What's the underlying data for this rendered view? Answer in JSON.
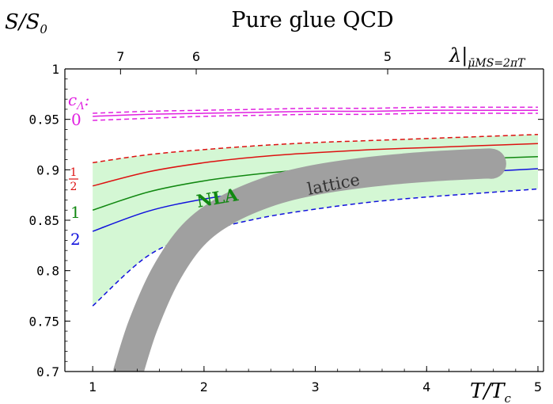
{
  "chart_data": {
    "type": "line",
    "title": "Pure glue QCD",
    "ylabel_main": "S/S",
    "ylabel_sub": "0",
    "xlabel_main": "T/T",
    "xlabel_sub": "c",
    "top_axis_label_main": "λ|",
    "top_axis_label_sub": "μ̄MS=2πT",
    "xlim": [
      0.75,
      5.05
    ],
    "ylim": [
      0.7,
      1.0
    ],
    "x_ticks": [
      1,
      2,
      3,
      4,
      5
    ],
    "x_tick_labels": [
      "1",
      "2",
      "3",
      "4",
      "5"
    ],
    "y_ticks": [
      0.7,
      0.75,
      0.8,
      0.85,
      0.9,
      0.95,
      1.0
    ],
    "y_tick_labels": [
      "0.7",
      "0.75",
      "0.8",
      "0.85",
      "0.9",
      "0.95",
      "1"
    ],
    "top_ticks": [
      {
        "label": "7",
        "x": 1.25
      },
      {
        "label": "6",
        "x": 1.93
      },
      {
        "label": "5",
        "x": 3.65
      }
    ],
    "legend_header": "c",
    "legend_header_sub": "Λ",
    "legend_header_suffix": ":",
    "grid": false,
    "band": {
      "name": "NLA",
      "color": "#d4f7d4",
      "x": [
        1.0,
        1.5,
        2.0,
        2.5,
        3.0,
        3.5,
        4.0,
        4.5,
        5.0
      ],
      "upper": [
        0.907,
        0.915,
        0.92,
        0.924,
        0.927,
        0.929,
        0.931,
        0.933,
        0.935
      ],
      "lower": [
        0.765,
        0.815,
        0.838,
        0.852,
        0.861,
        0.868,
        0.873,
        0.877,
        0.881
      ]
    },
    "series": [
      {
        "label": "0",
        "color": "#e020e0",
        "dash": false,
        "x": [
          1.0,
          1.5,
          2.0,
          2.5,
          3.0,
          3.5,
          4.0,
          4.5,
          5.0
        ],
        "values": [
          0.953,
          0.955,
          0.956,
          0.957,
          0.958,
          0.958,
          0.959,
          0.959,
          0.959
        ]
      },
      {
        "label": "",
        "color": "#e020e0",
        "dash": true,
        "x": [
          1.0,
          1.5,
          2.0,
          2.5,
          3.0,
          3.5,
          4.0,
          4.5,
          5.0
        ],
        "values": [
          0.956,
          0.958,
          0.959,
          0.96,
          0.961,
          0.961,
          0.962,
          0.962,
          0.962
        ]
      },
      {
        "label": "",
        "color": "#e020e0",
        "dash": true,
        "x": [
          1.0,
          1.5,
          2.0,
          2.5,
          3.0,
          3.5,
          4.0,
          4.5,
          5.0
        ],
        "values": [
          0.949,
          0.951,
          0.953,
          0.954,
          0.955,
          0.955,
          0.956,
          0.956,
          0.956
        ]
      },
      {
        "label": "1/2",
        "color": "#dd1111",
        "dash": false,
        "x": [
          1.0,
          1.5,
          2.0,
          2.5,
          3.0,
          3.5,
          4.0,
          4.5,
          5.0
        ],
        "values": [
          0.884,
          0.898,
          0.907,
          0.913,
          0.917,
          0.92,
          0.922,
          0.924,
          0.926
        ]
      },
      {
        "label": "1",
        "color": "#118811",
        "dash": false,
        "x": [
          1.0,
          1.5,
          2.0,
          2.5,
          3.0,
          3.5,
          4.0,
          4.5,
          5.0
        ],
        "values": [
          0.86,
          0.878,
          0.889,
          0.896,
          0.901,
          0.905,
          0.908,
          0.911,
          0.913
        ]
      },
      {
        "label": "2",
        "color": "#1111dd",
        "dash": false,
        "x": [
          1.0,
          1.5,
          2.0,
          2.5,
          3.0,
          3.5,
          4.0,
          4.5,
          5.0
        ],
        "values": [
          0.839,
          0.859,
          0.871,
          0.879,
          0.885,
          0.89,
          0.894,
          0.898,
          0.901
        ]
      },
      {
        "label": "",
        "color": "#dd1111",
        "dash": true,
        "x": [
          1.0,
          1.5,
          2.0,
          2.5,
          3.0,
          3.5,
          4.0,
          4.5,
          5.0
        ],
        "values": [
          0.907,
          0.915,
          0.92,
          0.924,
          0.927,
          0.929,
          0.931,
          0.933,
          0.935
        ]
      },
      {
        "label": "",
        "color": "#1111dd",
        "dash": true,
        "x": [
          1.0,
          1.5,
          2.0,
          2.5,
          3.0,
          3.5,
          4.0,
          4.5,
          5.0
        ],
        "values": [
          0.765,
          0.815,
          0.838,
          0.852,
          0.861,
          0.868,
          0.873,
          0.877,
          0.881
        ]
      }
    ],
    "lattice": {
      "name": "lattice",
      "color": "#a0a0a0",
      "x": [
        1.32,
        1.45,
        1.65,
        1.9,
        2.2,
        2.6,
        3.0,
        3.5,
        4.0,
        4.5,
        4.58
      ],
      "values": [
        0.7,
        0.745,
        0.795,
        0.835,
        0.86,
        0.879,
        0.89,
        0.898,
        0.903,
        0.906,
        0.906
      ]
    }
  }
}
